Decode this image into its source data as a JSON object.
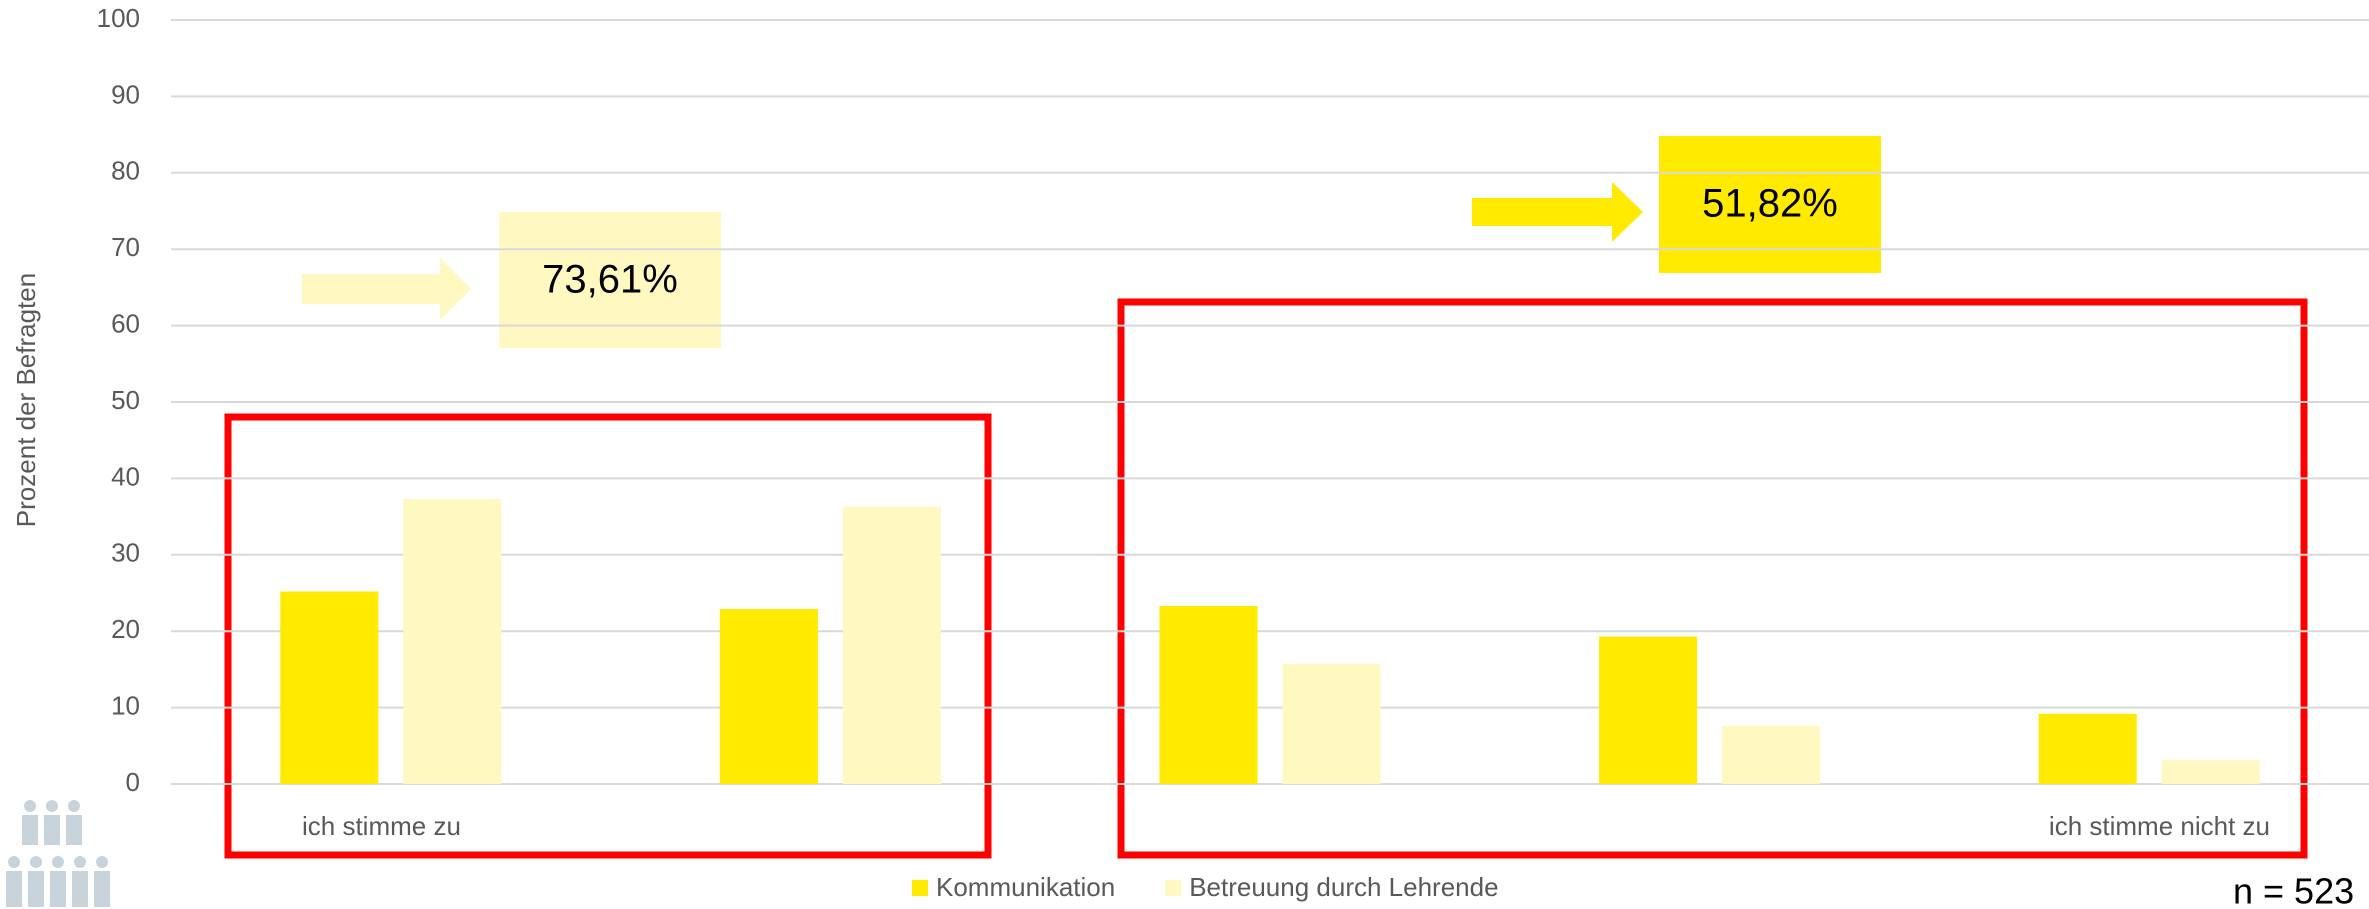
{
  "chart_data": {
    "type": "bar",
    "y_label": "Prozent der Befragten",
    "categories": [
      "ich stimme zu",
      null,
      null,
      null,
      "ich stimme nicht zu"
    ],
    "series": [
      {
        "name": "Kommunikation",
        "color": "#ffea00",
        "values": [
          25.2,
          22.9,
          23.3,
          19.3,
          9.2
        ]
      },
      {
        "name": "Betreuung durch Lehrende",
        "color": "#fff8c0",
        "values": [
          37.3,
          36.3,
          15.7,
          7.6,
          3.1
        ]
      }
    ],
    "ylim": [
      0,
      100
    ],
    "yticks": [
      0,
      10,
      20,
      30,
      40,
      50,
      60,
      70,
      80,
      90,
      100
    ],
    "grid": true,
    "annotations": [
      "73,61%",
      "51,82%"
    ],
    "note": "n = 523"
  }
}
